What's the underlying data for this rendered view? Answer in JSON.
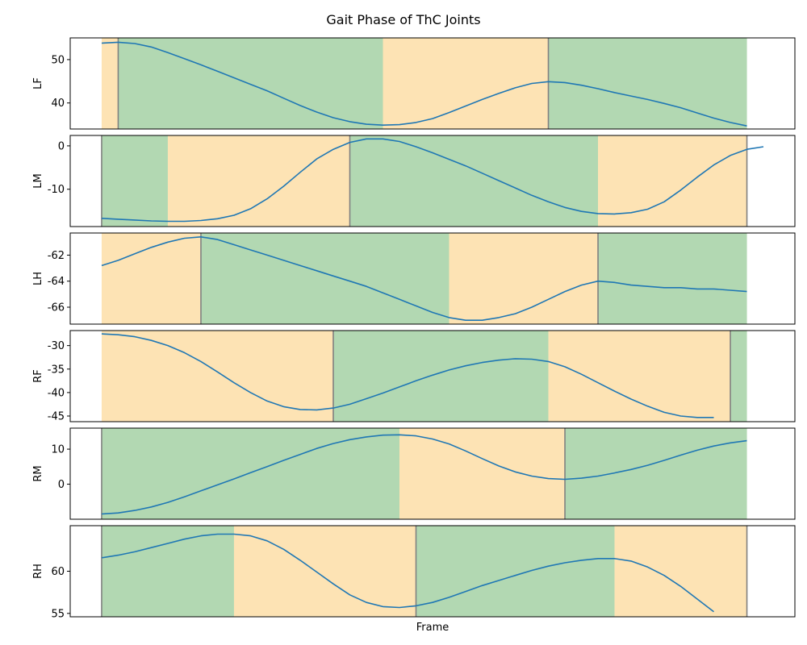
{
  "chart_data": {
    "type": "line",
    "title": "Gait Phase of ThC Joints",
    "xlabel": "Frame",
    "xlim": [
      -1.9,
      41.9
    ],
    "colors": {
      "line": "#1f77b4",
      "swing": "#fde3b4",
      "stance": "#b2d8b2",
      "divider": "#808080"
    },
    "subplots": [
      {
        "name": "LF",
        "ylabel": "LF",
        "ylim": [
          34,
          55
        ],
        "yticks": [
          40,
          50
        ],
        "phases": [
          {
            "start": 0,
            "end": 1,
            "phase": "swing"
          },
          {
            "start": 1,
            "end": 17,
            "phase": "stance"
          },
          {
            "start": 17,
            "end": 27,
            "phase": "swing"
          },
          {
            "start": 27,
            "end": 39,
            "phase": "stance"
          }
        ],
        "dividers": [
          1,
          27
        ],
        "values": [
          53.8,
          54.0,
          53.7,
          52.9,
          51.6,
          50.2,
          48.8,
          47.3,
          45.8,
          44.3,
          42.8,
          41.1,
          39.4,
          37.9,
          36.6,
          35.7,
          35.1,
          34.9,
          35.0,
          35.5,
          36.4,
          37.8,
          39.3,
          40.8,
          42.2,
          43.5,
          44.5,
          44.9,
          44.7,
          44.1,
          43.3,
          42.4,
          41.6,
          40.8,
          39.9,
          38.9,
          37.7,
          36.5,
          35.5,
          34.7
        ]
      },
      {
        "name": "LM",
        "ylabel": "LM",
        "ylim": [
          -18.6,
          2.4
        ],
        "yticks": [
          -10,
          0
        ],
        "phases": [
          {
            "start": 0,
            "end": 4,
            "phase": "stance"
          },
          {
            "start": 4,
            "end": 15,
            "phase": "swing"
          },
          {
            "start": 15,
            "end": 30,
            "phase": "stance"
          },
          {
            "start": 30,
            "end": 39,
            "phase": "swing"
          }
        ],
        "dividers": [
          0,
          15,
          39
        ],
        "values": [
          -16.7,
          -16.9,
          -17.1,
          -17.3,
          -17.4,
          -17.4,
          -17.2,
          -16.8,
          -16.0,
          -14.5,
          -12.2,
          -9.3,
          -6.1,
          -3.0,
          -0.8,
          0.8,
          1.6,
          1.6,
          1.0,
          -0.2,
          -1.6,
          -3.1,
          -4.6,
          -6.3,
          -8.0,
          -9.7,
          -11.4,
          -12.9,
          -14.2,
          -15.1,
          -15.6,
          -15.7,
          -15.4,
          -14.6,
          -12.9,
          -10.2,
          -7.2,
          -4.4,
          -2.2,
          -0.8,
          -0.2
        ]
      },
      {
        "name": "LH",
        "ylabel": "LH",
        "ylim": [
          -67.3,
          -60.3
        ],
        "yticks": [
          -66,
          -64,
          -62
        ],
        "phases": [
          {
            "start": 0,
            "end": 6,
            "phase": "swing"
          },
          {
            "start": 6,
            "end": 21,
            "phase": "stance"
          },
          {
            "start": 21,
            "end": 30,
            "phase": "swing"
          },
          {
            "start": 30,
            "end": 39,
            "phase": "stance"
          }
        ],
        "dividers": [
          6,
          30
        ],
        "values": [
          -62.8,
          -62.4,
          -61.9,
          -61.4,
          -61.0,
          -60.7,
          -60.6,
          -60.8,
          -61.2,
          -61.6,
          -62.0,
          -62.4,
          -62.8,
          -63.2,
          -63.6,
          -64.0,
          -64.4,
          -64.9,
          -65.4,
          -65.9,
          -66.4,
          -66.8,
          -67.0,
          -67.0,
          -66.8,
          -66.5,
          -66.0,
          -65.4,
          -64.8,
          -64.3,
          -64.0,
          -64.1,
          -64.3,
          -64.4,
          -64.5,
          -64.5,
          -64.6,
          -64.6,
          -64.7,
          -64.8
        ]
      },
      {
        "name": "RF",
        "ylabel": "RF",
        "ylim": [
          -46.2,
          -26.8
        ],
        "yticks": [
          -45,
          -40,
          -35,
          -30
        ],
        "phases": [
          {
            "start": 0,
            "end": 14,
            "phase": "swing"
          },
          {
            "start": 14,
            "end": 27,
            "phase": "stance"
          },
          {
            "start": 27,
            "end": 38,
            "phase": "swing"
          },
          {
            "start": 38,
            "end": 39,
            "phase": "stance"
          }
        ],
        "dividers": [
          14,
          38
        ],
        "values": [
          -27.5,
          -27.7,
          -28.1,
          -28.9,
          -30.0,
          -31.5,
          -33.4,
          -35.6,
          -37.9,
          -40.0,
          -41.8,
          -43.0,
          -43.6,
          -43.7,
          -43.3,
          -42.5,
          -41.3,
          -40.1,
          -38.8,
          -37.5,
          -36.3,
          -35.2,
          -34.3,
          -33.6,
          -33.1,
          -32.8,
          -32.9,
          -33.4,
          -34.5,
          -36.1,
          -37.9,
          -39.7,
          -41.4,
          -42.9,
          -44.2,
          -45.0,
          -45.3,
          -45.3
        ]
      },
      {
        "name": "RM",
        "ylabel": "RM",
        "ylim": [
          -10,
          16
        ],
        "yticks": [
          0,
          10
        ],
        "phases": [
          {
            "start": 0,
            "end": 18,
            "phase": "stance"
          },
          {
            "start": 18,
            "end": 28,
            "phase": "swing"
          },
          {
            "start": 28,
            "end": 39,
            "phase": "stance"
          }
        ],
        "dividers": [
          0,
          28
        ],
        "values": [
          -8.5,
          -8.2,
          -7.5,
          -6.5,
          -5.2,
          -3.6,
          -1.9,
          -0.2,
          1.5,
          3.3,
          5.0,
          6.8,
          8.5,
          10.2,
          11.6,
          12.7,
          13.5,
          14.0,
          14.1,
          13.8,
          12.9,
          11.5,
          9.5,
          7.3,
          5.2,
          3.5,
          2.3,
          1.6,
          1.4,
          1.7,
          2.3,
          3.2,
          4.2,
          5.4,
          6.8,
          8.3,
          9.7,
          10.9,
          11.8,
          12.4
        ]
      },
      {
        "name": "RH",
        "ylabel": "RH",
        "ylim": [
          54.6,
          65.4
        ],
        "yticks": [
          55,
          60
        ],
        "phases": [
          {
            "start": 0,
            "end": 8,
            "phase": "stance"
          },
          {
            "start": 8,
            "end": 19,
            "phase": "swing"
          },
          {
            "start": 19,
            "end": 31,
            "phase": "stance"
          },
          {
            "start": 31,
            "end": 39,
            "phase": "swing"
          }
        ],
        "dividers": [
          0,
          19,
          39
        ],
        "values": [
          61.6,
          61.9,
          62.3,
          62.8,
          63.3,
          63.8,
          64.2,
          64.4,
          64.4,
          64.2,
          63.6,
          62.6,
          61.3,
          59.9,
          58.5,
          57.2,
          56.3,
          55.8,
          55.7,
          55.9,
          56.3,
          56.9,
          57.6,
          58.3,
          58.9,
          59.5,
          60.1,
          60.6,
          61.0,
          61.3,
          61.5,
          61.5,
          61.2,
          60.5,
          59.5,
          58.2,
          56.7,
          55.2
        ]
      }
    ]
  }
}
